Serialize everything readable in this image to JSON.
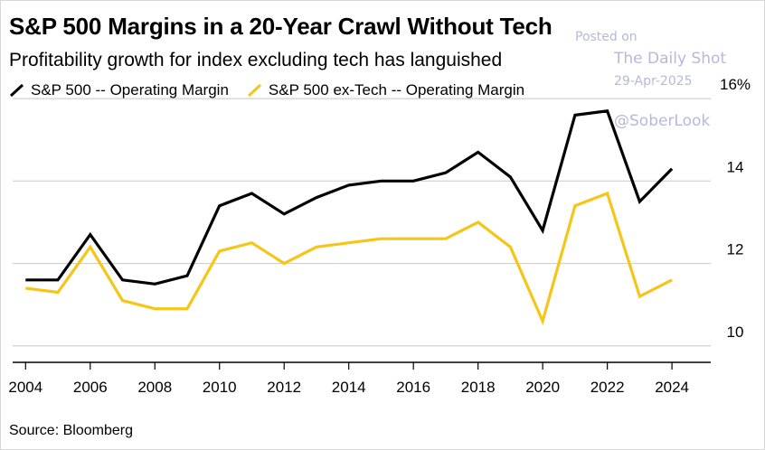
{
  "title": "S&P 500 Margins in a 20-Year Crawl Without Tech",
  "subtitle": "Profitability growth for index excluding tech has languished",
  "source": "Source: Bloomberg",
  "watermark": {
    "posted_on": "Posted on",
    "publisher": "The Daily Shot",
    "date": "29-Apr-2025",
    "handle": "@SoberLook"
  },
  "colors": {
    "sp500": "#000000",
    "ex_tech": "#F5C518",
    "grid": "#d0d0d0",
    "axis": "#000000"
  },
  "chart_data": {
    "type": "line",
    "title": "S&P 500 Margins in a 20-Year Crawl Without Tech",
    "subtitle": "Profitability growth for index excluding tech has languished",
    "xlabel": "",
    "ylabel": "",
    "x": [
      2004,
      2005,
      2006,
      2007,
      2008,
      2009,
      2010,
      2011,
      2012,
      2013,
      2014,
      2015,
      2016,
      2017,
      2018,
      2019,
      2020,
      2021,
      2022,
      2023,
      2024
    ],
    "x_ticks": [
      "2004",
      "2006",
      "2008",
      "2010",
      "2012",
      "2014",
      "2016",
      "2018",
      "2020",
      "2022",
      "2024"
    ],
    "xlim": [
      2003.6,
      2025.2
    ],
    "ylim": [
      9.6,
      16.2
    ],
    "y_ticks": [
      {
        "value": 10,
        "label": "10"
      },
      {
        "value": 12,
        "label": "12"
      },
      {
        "value": 14,
        "label": "14"
      },
      {
        "value": 16,
        "label": "16%"
      }
    ],
    "grid": true,
    "legend_position": "top-left",
    "series": [
      {
        "name": "S&P 500 -- Operating Margin",
        "color": "#000000",
        "values": [
          11.6,
          11.6,
          12.7,
          11.6,
          11.5,
          11.7,
          13.4,
          13.7,
          13.2,
          13.6,
          13.9,
          14.0,
          14.0,
          14.2,
          14.7,
          14.1,
          12.8,
          15.6,
          15.7,
          13.5,
          14.3
        ]
      },
      {
        "name": "S&P 500 ex-Tech -- Operating Margin",
        "color": "#F5C518",
        "values": [
          11.4,
          11.3,
          12.4,
          11.1,
          10.9,
          10.9,
          12.3,
          12.5,
          12.0,
          12.4,
          12.5,
          12.6,
          12.6,
          12.6,
          13.0,
          12.4,
          10.6,
          13.4,
          13.7,
          11.2,
          11.6
        ]
      }
    ]
  }
}
